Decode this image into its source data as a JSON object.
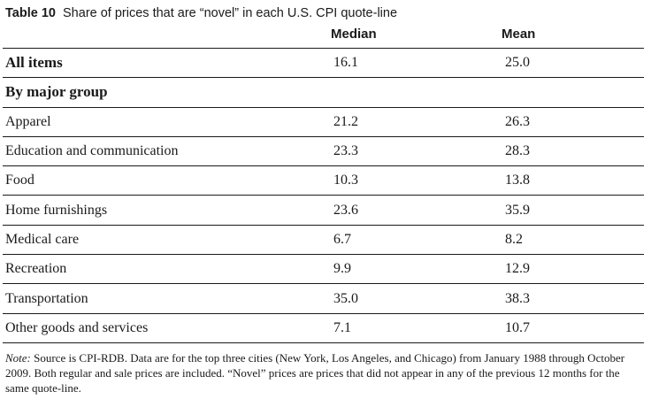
{
  "caption": {
    "number": "Table 10",
    "title": "Share of prices that are “novel” in each U.S. CPI quote-line"
  },
  "columns": {
    "median": "Median",
    "mean": "Mean"
  },
  "rows": [
    {
      "label": "All items",
      "median": "16.1",
      "mean": "25.0",
      "bold": true
    },
    {
      "label": "By major group",
      "median": "",
      "mean": "",
      "bold": true
    },
    {
      "label": "Apparel",
      "median": "21.2",
      "mean": "26.3"
    },
    {
      "label": "Education and communication",
      "median": "23.3",
      "mean": "28.3"
    },
    {
      "label": "Food",
      "median": "10.3",
      "mean": "13.8"
    },
    {
      "label": "Home furnishings",
      "median": "23.6",
      "mean": "35.9"
    },
    {
      "label": "Medical care",
      "median": "6.7",
      "mean": "8.2"
    },
    {
      "label": "Recreation",
      "median": "9.9",
      "mean": "12.9"
    },
    {
      "label": "Transportation",
      "median": "35.0",
      "mean": "38.3"
    },
    {
      "label": "Other goods and services",
      "median": "7.1",
      "mean": "10.7"
    }
  ],
  "note": {
    "lead": "Note:",
    "text": " Source is CPI-RDB. Data are for the top three cities (New York, Los Angeles, and Chicago) from January 1988 through October 2009. Both regular and sale prices are included. “Novel” prices are prices that did not appear in any of the previous 12 months for the same quote-line."
  }
}
